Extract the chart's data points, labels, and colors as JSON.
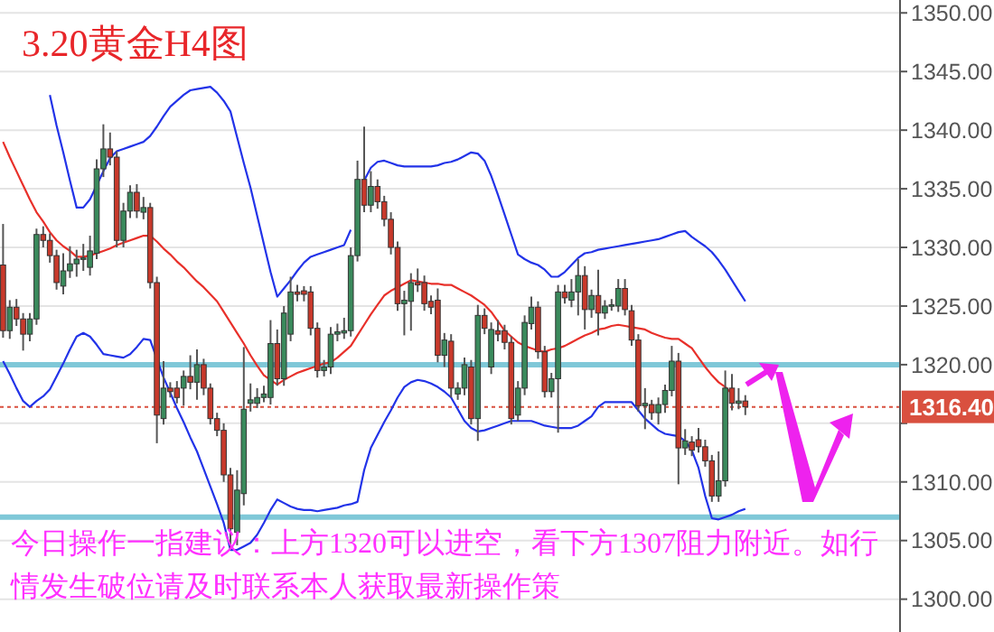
{
  "chart_data": {
    "type": "candlestick",
    "title": "3.20黄金H4图",
    "annotations": [
      "今日操作一指建议：上方1320可以进空，看下方1307阻力附近。如行情发生破位请及时联系本人获取最新操作策"
    ],
    "categories": [
      null,
      null,
      null,
      null,
      null,
      null,
      null,
      null,
      null,
      null,
      null,
      null,
      null,
      null,
      null,
      null,
      null,
      null,
      null,
      null,
      null,
      null,
      null,
      null,
      null,
      null,
      null,
      null,
      null,
      null,
      null,
      null,
      null,
      null,
      null,
      null,
      null,
      null,
      null,
      null,
      null,
      null,
      null,
      null,
      null,
      null,
      null,
      null,
      null,
      null,
      null,
      null,
      null,
      null,
      null,
      null,
      null,
      null,
      null,
      null,
      null,
      null,
      null,
      null,
      null,
      null,
      null,
      null,
      null,
      null,
      null,
      null,
      null,
      null,
      null,
      null,
      null,
      null,
      null,
      null,
      null,
      null,
      null,
      null,
      null,
      null,
      null,
      null,
      null,
      null,
      null,
      null,
      null,
      null,
      null,
      null,
      null,
      null,
      null,
      null,
      null,
      null,
      null,
      null,
      null,
      null,
      null,
      null,
      null,
      null,
      null,
      null
    ],
    "ohlc": [
      [
        1328.5,
        1332,
        1322.3,
        1322.9
      ],
      [
        1322.9,
        1325.5,
        1322.2,
        1324.9
      ],
      [
        1324.9,
        1325.6,
        1323.3,
        1323.9
      ],
      [
        1323.9,
        1324.4,
        1321.2,
        1322.6
      ],
      [
        1322.6,
        1324.4,
        1322,
        1323.9
      ],
      [
        1323.9,
        1331.6,
        1323.4,
        1331.1
      ],
      [
        1331.1,
        1331.8,
        1330,
        1330.6
      ],
      [
        1330.6,
        1331.2,
        1328.7,
        1329.3
      ],
      [
        1329.3,
        1329.8,
        1326.4,
        1327
      ],
      [
        1326.7,
        1329.5,
        1326,
        1328
      ],
      [
        1328,
        1330.1,
        1327.4,
        1328.6
      ],
      [
        1328.6,
        1329.8,
        1327.5,
        1329
      ],
      [
        1329,
        1330.3,
        1328,
        1329.1
      ],
      [
        1328.3,
        1331,
        1327.6,
        1329.7
      ],
      [
        1329.5,
        1337.5,
        1329,
        1336.7
      ],
      [
        1336.7,
        1340.5,
        1336,
        1338.4
      ],
      [
        1338.4,
        1339.8,
        1337,
        1337.7
      ],
      [
        1337.7,
        1338.2,
        1330,
        1330.6
      ],
      [
        1330.6,
        1333.8,
        1330,
        1333.1
      ],
      [
        1333.1,
        1335.3,
        1332.5,
        1334.7
      ],
      [
        1334.7,
        1335.4,
        1332.5,
        1333.1
      ],
      [
        1333,
        1334.3,
        1332.4,
        1333.4
      ],
      [
        1333.4,
        1333.8,
        1326.5,
        1327
      ],
      [
        1327,
        1327.5,
        1313.3,
        1315.7
      ],
      [
        1315.4,
        1320.3,
        1314.9,
        1318
      ],
      [
        1318,
        1318.5,
        1317.2,
        1317.7
      ],
      [
        1318,
        1318.6,
        1316.7,
        1317.2
      ],
      [
        1318,
        1319.5,
        1316.5,
        1319
      ],
      [
        1319,
        1320.8,
        1317.9,
        1318.5
      ],
      [
        1318.5,
        1321.3,
        1317,
        1320
      ],
      [
        1320,
        1320.5,
        1317.4,
        1318
      ],
      [
        1318,
        1318.4,
        1314.9,
        1315.4
      ],
      [
        1315.4,
        1315.9,
        1313.9,
        1314.4
      ],
      [
        1314.4,
        1315,
        1310,
        1310.6
      ],
      [
        1310.6,
        1311.2,
        1304.2,
        1306
      ],
      [
        1305.7,
        1311,
        1304.6,
        1309.3
      ],
      [
        1309,
        1321.5,
        1308,
        1316.2
      ],
      [
        1316.7,
        1318.4,
        1316,
        1317
      ],
      [
        1316.7,
        1318,
        1316.3,
        1317.2
      ],
      [
        1317.2,
        1318.2,
        1316.8,
        1317.5
      ],
      [
        1317.2,
        1323.8,
        1316.6,
        1321.8
      ],
      [
        1321.8,
        1323,
        1318.2,
        1318.8
      ],
      [
        1318.8,
        1325,
        1318.2,
        1324.4
      ],
      [
        1322.6,
        1327.5,
        1322,
        1326.2
      ],
      [
        1326.2,
        1326.8,
        1325.4,
        1326
      ],
      [
        1326.3,
        1326.7,
        1325.4,
        1326
      ],
      [
        1326.2,
        1326.7,
        1322.5,
        1323.1
      ],
      [
        1323.1,
        1323.6,
        1318.9,
        1319.5
      ],
      [
        1319.5,
        1320.4,
        1319,
        1319.8
      ],
      [
        1319.8,
        1323.2,
        1319.2,
        1322.6
      ],
      [
        1322.6,
        1323.5,
        1322,
        1322.8
      ],
      [
        1322.7,
        1324,
        1322.2,
        1322.9
      ],
      [
        1322.9,
        1330,
        1322.4,
        1329.3
      ],
      [
        1329.3,
        1337.4,
        1328.8,
        1335.8
      ],
      [
        1335.8,
        1340.3,
        1333,
        1333.6
      ],
      [
        1333.6,
        1336.5,
        1333,
        1335.2
      ],
      [
        1335.2,
        1335.8,
        1333.3,
        1333.9
      ],
      [
        1333.9,
        1334.4,
        1331.8,
        1332.4
      ],
      [
        1332.4,
        1333,
        1329.4,
        1330
      ],
      [
        1330,
        1330.5,
        1324.6,
        1325.2
      ],
      [
        1325.2,
        1326.3,
        1322.5,
        1325.5
      ],
      [
        1325.4,
        1327.8,
        1322.9,
        1327
      ],
      [
        1327,
        1328.2,
        1326.2,
        1326.8
      ],
      [
        1327,
        1327.6,
        1324.6,
        1325.2
      ],
      [
        1325.4,
        1325.9,
        1324.3,
        1324.9
      ],
      [
        1325.5,
        1326.5,
        1320.2,
        1320.8
      ],
      [
        1320.8,
        1322.7,
        1319.8,
        1322.1
      ],
      [
        1322,
        1322.6,
        1317.2,
        1318
      ],
      [
        1317.5,
        1318.5,
        1317,
        1318
      ],
      [
        1318,
        1320.6,
        1317.4,
        1320
      ],
      [
        1319.8,
        1320.4,
        1314.9,
        1315.4
      ],
      [
        1315.4,
        1325.1,
        1313.5,
        1324.2
      ],
      [
        1324.2,
        1324.8,
        1322.6,
        1323.1
      ],
      [
        1319.8,
        1323.6,
        1319.2,
        1323
      ],
      [
        1322.9,
        1323.8,
        1322,
        1322.6
      ],
      [
        1322.9,
        1323.4,
        1321.3,
        1321.9
      ],
      [
        1321.9,
        1322.4,
        1314.9,
        1315.4
      ],
      [
        1315.7,
        1318.6,
        1315.2,
        1318
      ],
      [
        1318,
        1324.2,
        1317.4,
        1323.6
      ],
      [
        1323.5,
        1325.8,
        1323,
        1324.9
      ],
      [
        1324.9,
        1325.4,
        1320.5,
        1321.1
      ],
      [
        1321.1,
        1321.6,
        1317.2,
        1317.7
      ],
      [
        1317.7,
        1319.3,
        1317.2,
        1318.8
      ],
      [
        1318.8,
        1326.8,
        1314.2,
        1326.2
      ],
      [
        1326.2,
        1326.8,
        1325.2,
        1325.7
      ],
      [
        1325.5,
        1327.3,
        1324.9,
        1326.2
      ],
      [
        1326.2,
        1329,
        1324.2,
        1327.6
      ],
      [
        1327.6,
        1328.4,
        1323,
        1324.7
      ],
      [
        1324.7,
        1326.4,
        1324,
        1325.9
      ],
      [
        1325.9,
        1328.1,
        1322.5,
        1324.4
      ],
      [
        1324.4,
        1325.5,
        1323.9,
        1325
      ],
      [
        1325,
        1325.6,
        1324.6,
        1325.1
      ],
      [
        1325,
        1327.3,
        1324.5,
        1326.5
      ],
      [
        1326.5,
        1327.3,
        1324.2,
        1324.7
      ],
      [
        1324.6,
        1325.1,
        1321.6,
        1322.1
      ],
      [
        1322.1,
        1322.6,
        1316,
        1316.5
      ],
      [
        1316.5,
        1318,
        1314.5,
        1316.7
      ],
      [
        1316.6,
        1317,
        1315.3,
        1315.9
      ],
      [
        1315.9,
        1317.2,
        1314.9,
        1316.6
      ],
      [
        1316.6,
        1318.3,
        1315.9,
        1317.8
      ],
      [
        1317.8,
        1321.6,
        1317.3,
        1320.3
      ],
      [
        1320.3,
        1321,
        1309.8,
        1312.9
      ],
      [
        1312.9,
        1314.5,
        1312.3,
        1313.5
      ],
      [
        1313.4,
        1313.9,
        1312.2,
        1312.7
      ],
      [
        1313.6,
        1314.6,
        1312.5,
        1313
      ],
      [
        1313,
        1313.6,
        1311.3,
        1311.8
      ],
      [
        1311.8,
        1312.3,
        1308.3,
        1308.8
      ],
      [
        1308.8,
        1312.6,
        1308.3,
        1310.1
      ],
      [
        1310.1,
        1319.5,
        1309.6,
        1318
      ],
      [
        1318,
        1319.2,
        1316.1,
        1316.7
      ],
      [
        1316.7,
        1318,
        1316.2,
        1316.9
      ],
      [
        1316.9,
        1317.4,
        1315.7,
        1316.4
      ]
    ],
    "ylim": [
      1297.2,
      1351.1
    ],
    "yticks": [
      {
        "value": 1300,
        "label": "1300.00"
      },
      {
        "value": 1305,
        "label": "1305.00"
      },
      {
        "value": 1310,
        "label": "1310.00"
      },
      {
        "value": 1315,
        "label": null
      },
      {
        "value": 1320,
        "label": "1320.00"
      },
      {
        "value": 1325,
        "label": "1325.00"
      },
      {
        "value": 1330,
        "label": "1330.00"
      },
      {
        "value": 1335,
        "label": "1335.00"
      },
      {
        "value": 1340,
        "label": "1340.00"
      },
      {
        "value": 1345,
        "label": "1345.00"
      },
      {
        "value": 1350,
        "label": "1350.00"
      }
    ],
    "tick_labels": "y",
    "grid": "y",
    "ref_lines": [
      {
        "axis": "y",
        "value": 1320,
        "color": "#7fc8d8"
      },
      {
        "axis": "y",
        "value": 1307,
        "color": "#7fc8d8"
      },
      {
        "axis": "y",
        "value": 1316.4,
        "label": "1316.40",
        "color": "#d9503f",
        "line_style": "dotted"
      }
    ],
    "series": [
      {
        "type": "line",
        "color": "#2233e8",
        "values": [
          null,
          null,
          null,
          null,
          null,
          null,
          null,
          1343.0,
          1340.4,
          1338.1,
          1335.7,
          1333.4,
          1333.4,
          1334.1,
          1335.3,
          1336.5,
          1337.6,
          1338.2,
          1338.4,
          1338.6,
          1338.8,
          1339.0,
          1339.5,
          1340.3,
          1341.2,
          1342.0,
          1342.5,
          1343.0,
          1343.4,
          1343.5,
          1343.6,
          1343.7,
          1343.2,
          1342.5,
          1341.6,
          1339.4,
          1337.2,
          1335.1,
          1332.7,
          1330.3,
          1327.9,
          1325.8,
          1326.5,
          1327.2,
          1328.0,
          1328.7,
          1329.2,
          1329.4,
          1329.6,
          1329.8,
          1330.0,
          1330.2,
          1331.5,
          null,
          1335.7,
          1336.8,
          1337.3,
          1337.4,
          1337.2,
          1337.0,
          1336.9,
          1336.9,
          1336.9,
          1336.9,
          1336.9,
          1337.0,
          1337.2,
          1337.3,
          1337.5,
          1337.8,
          1338.1,
          1338.0,
          1337.4,
          1336.1,
          1334.5,
          1332.8,
          1331.1,
          1329.4,
          1329.0,
          1328.7,
          1328.5,
          1328.1,
          1327.5,
          1327.5,
          1327.9,
          1328.5,
          1329.1,
          1329.5,
          1329.6,
          1329.8,
          1329.9,
          1330.0,
          1330.1,
          1330.2,
          1330.3,
          1330.4,
          1330.5,
          1330.6,
          1330.7,
          1330.9,
          1331.1,
          1331.3,
          1331.4,
          1330.9,
          1330.5,
          1330.1,
          1329.6,
          1328.9,
          1328.1,
          1327.2,
          1326.3,
          1325.4
        ]
      },
      {
        "type": "line",
        "color": "#e8302a",
        "values": [
          1339.0,
          1337.7,
          1336.5,
          1335.3,
          1334.1,
          1333.0,
          1332.2,
          1331.3,
          1330.6,
          1330.1,
          1329.7,
          1329.2,
          1329.2,
          1329.3,
          1329.5,
          1329.7,
          1329.9,
          1330.2,
          1330.4,
          1330.6,
          1330.8,
          1331.0,
          1331.0,
          1330.5,
          1329.9,
          1329.4,
          1328.8,
          1328.3,
          1327.7,
          1327.1,
          1326.6,
          1326.0,
          1325.4,
          1324.5,
          1323.6,
          1322.7,
          1321.8,
          1320.8,
          1319.9,
          1319.1,
          1318.7,
          1318.3,
          1318.7,
          1319.0,
          1319.3,
          1319.5,
          1319.7,
          1319.9,
          1320.1,
          1320.2,
          1320.6,
          1321.1,
          1321.6,
          1322.5,
          1323.4,
          1324.3,
          1325.1,
          1325.9,
          1326.3,
          1326.6,
          1326.9,
          1327.2,
          1327.1,
          1327.0,
          1326.9,
          1326.9,
          1326.8,
          1326.8,
          1326.5,
          1326.2,
          1325.9,
          1325.5,
          1325.1,
          1324.5,
          1323.7,
          1322.9,
          1322.4,
          1321.9,
          1321.6,
          1321.4,
          1321.2,
          1321.1,
          1321.3,
          1321.4,
          1321.6,
          1321.9,
          1322.2,
          1322.5,
          1322.7,
          1323.0,
          1323.1,
          1323.3,
          1323.4,
          1323.3,
          1323.2,
          1323.1,
          1323.0,
          1322.7,
          1322.5,
          1322.3,
          1322.2,
          1322.2,
          1321.8,
          1321.4,
          1320.6,
          1319.8,
          1319.1,
          1318.5,
          1318.1,
          1317.5,
          null,
          null
        ]
      },
      {
        "type": "line",
        "color": "#2233e8",
        "values": [
          1320.3,
          1319.2,
          1318.0,
          1316.9,
          1316.4,
          1316.9,
          1317.3,
          1317.9,
          1319.0,
          1320.1,
          1321.3,
          1322.4,
          1322.7,
          1322.4,
          1321.7,
          1320.9,
          1320.8,
          1320.7,
          1320.6,
          1320.9,
          1321.5,
          1322.2,
          1322.1,
          1320.5,
          1318.9,
          1317.6,
          1316.3,
          1315.1,
          1313.8,
          1312.6,
          1311.1,
          1309.6,
          1308.1,
          1306.5,
          1304.2,
          1304.2,
          1304.5,
          1304.8,
          1305.5,
          1306.5,
          1307.6,
          1308.5,
          1308.2,
          1307.9,
          1307.7,
          1307.6,
          1307.6,
          1307.5,
          1307.6,
          1307.7,
          1307.8,
          1308.0,
          1308.1,
          1308.3,
          1311.0,
          1312.9,
          1314.0,
          1315.1,
          1316.1,
          1317.2,
          1318.1,
          1318.5,
          1318.7,
          1318.6,
          1318.4,
          1318.1,
          1317.7,
          1317.2,
          1316.2,
          1315.2,
          1314.6,
          1314.3,
          1314.4,
          1314.6,
          1314.8,
          1315.0,
          1315.2,
          1315.2,
          1315.2,
          1315.2,
          1315.0,
          1314.8,
          1314.7,
          1314.6,
          1314.6,
          1314.6,
          1314.8,
          1315.2,
          1315.6,
          1316.4,
          1316.8,
          1316.8,
          1316.8,
          1316.8,
          1316.8,
          1316.1,
          1315.4,
          1314.9,
          1314.4,
          1314.1,
          1314.0,
          1313.9,
          1313.5,
          1312.7,
          1311.2,
          1308.8,
          1306.9,
          1306.8,
          1307.0,
          1307.2,
          1307.5,
          1307.7
        ]
      }
    ]
  }
}
